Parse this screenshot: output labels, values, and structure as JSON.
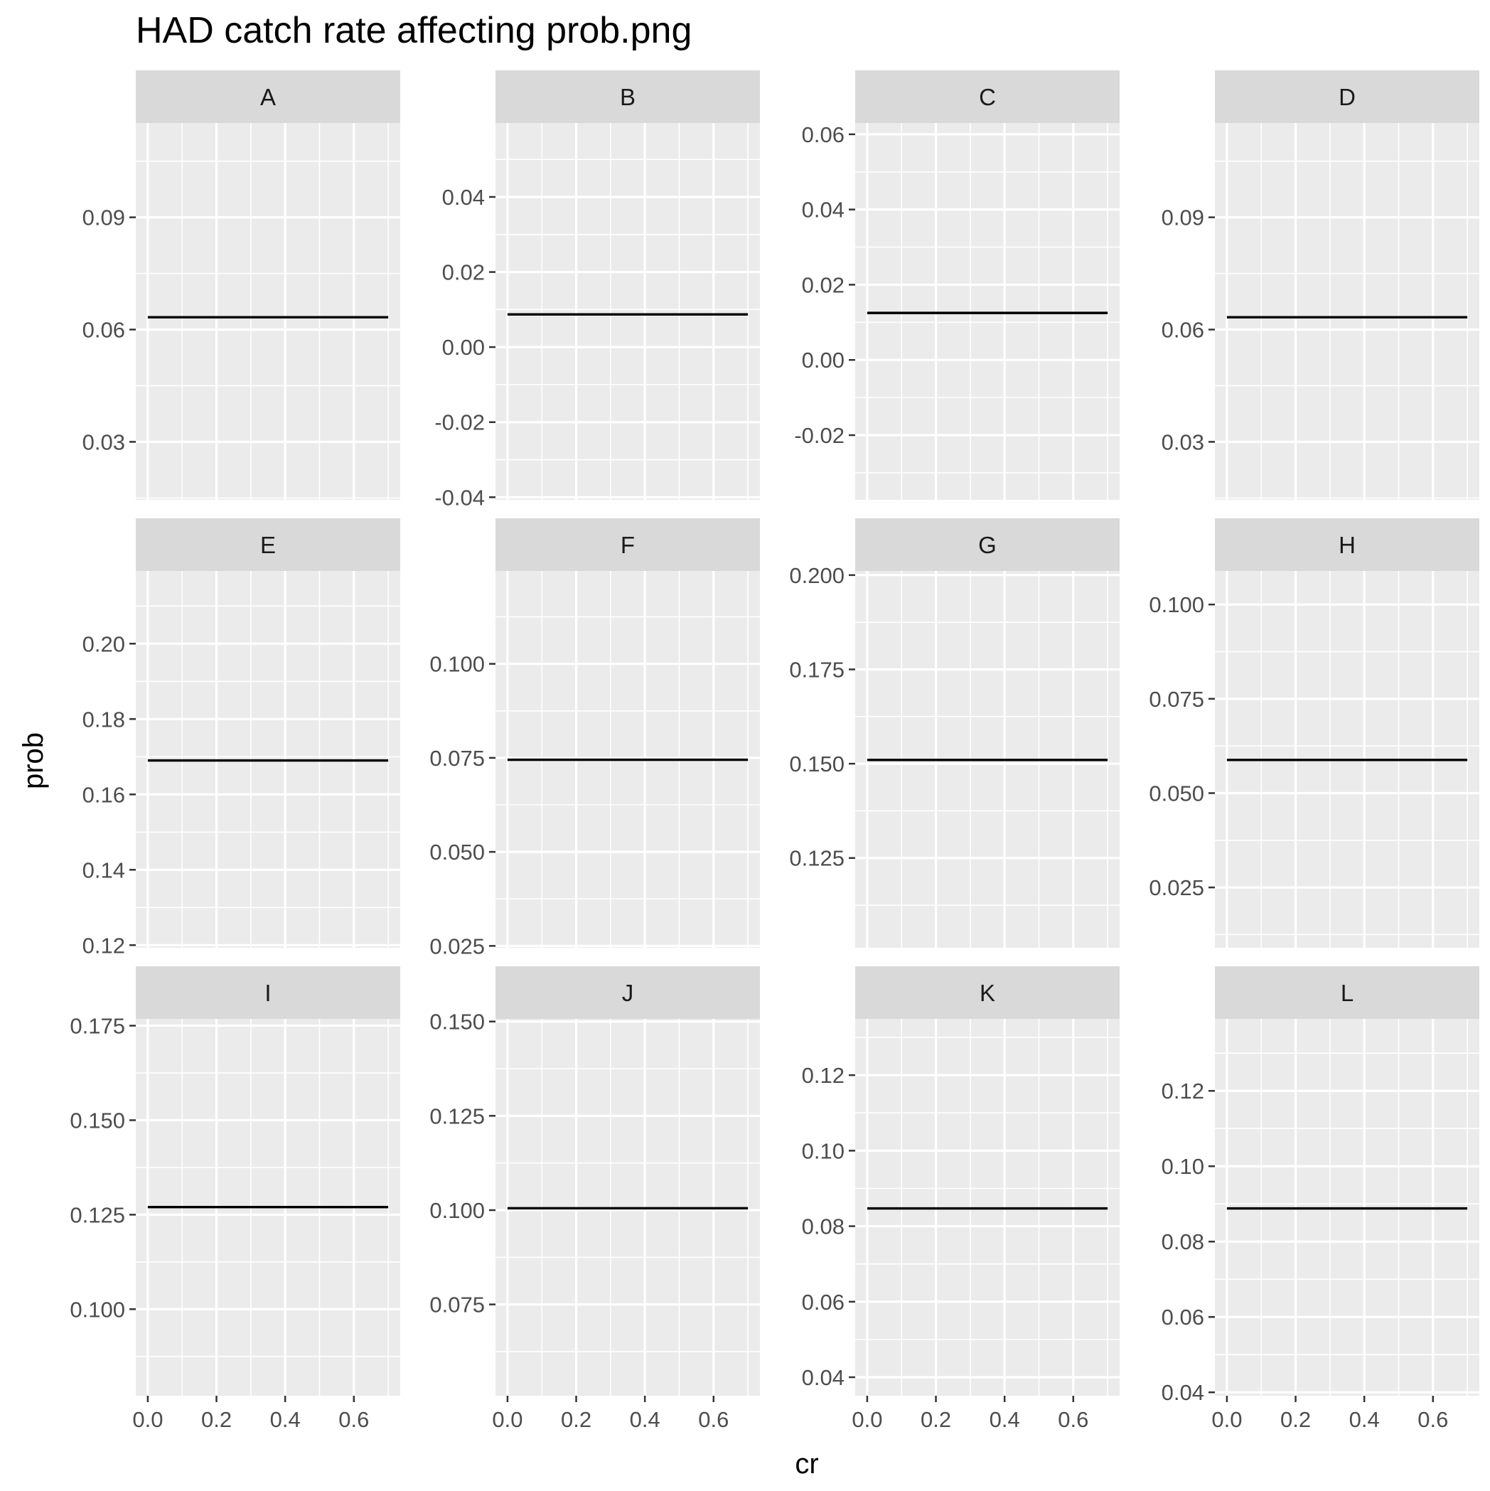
{
  "chart_data": {
    "type": "line",
    "title": "HAD catch rate affecting prob.png",
    "xlabel": "cr",
    "ylabel": "prob",
    "grid": true,
    "layout": "facet-4x3",
    "x_ticks": [
      "0.0",
      "0.2",
      "0.4",
      "0.6"
    ],
    "xlim": [
      -0.035,
      0.735
    ],
    "panels": [
      {
        "label": "A",
        "x": [
          0.0,
          0.7
        ],
        "y": [
          0.0633,
          0.0633
        ],
        "ylim": [
          0.0145,
          0.1152
        ],
        "y_ticks": [
          "0.03",
          "0.06",
          "0.09"
        ]
      },
      {
        "label": "B",
        "x": [
          0.0,
          0.7
        ],
        "y": [
          0.0087,
          0.0087
        ],
        "ylim": [
          -0.0407,
          0.0597
        ],
        "y_ticks": [
          "-0.04",
          "-0.02",
          "0.00",
          "0.02",
          "0.04"
        ]
      },
      {
        "label": "C",
        "x": [
          0.0,
          0.7
        ],
        "y": [
          0.0125,
          0.0125
        ],
        "ylim": [
          -0.0372,
          0.063
        ],
        "y_ticks": [
          "-0.02",
          "0.00",
          "0.02",
          "0.04",
          "0.06"
        ]
      },
      {
        "label": "D",
        "x": [
          0.0,
          0.7
        ],
        "y": [
          0.0633,
          0.0633
        ],
        "ylim": [
          0.0145,
          0.1152
        ],
        "y_ticks": [
          "0.03",
          "0.06",
          "0.09"
        ]
      },
      {
        "label": "E",
        "x": [
          0.0,
          0.7
        ],
        "y": [
          0.169,
          0.169
        ],
        "ylim": [
          0.1193,
          0.2193
        ],
        "y_ticks": [
          "0.12",
          "0.14",
          "0.16",
          "0.18",
          "0.20"
        ]
      },
      {
        "label": "F",
        "x": [
          0.0,
          0.7
        ],
        "y": [
          0.0745,
          0.0745
        ],
        "ylim": [
          0.0245,
          0.1247
        ],
        "y_ticks": [
          "0.025",
          "0.050",
          "0.075",
          "0.100"
        ]
      },
      {
        "label": "G",
        "x": [
          0.0,
          0.7
        ],
        "y": [
          0.151,
          0.151
        ],
        "ylim": [
          0.1012,
          0.2011
        ],
        "y_ticks": [
          "0.125",
          "0.150",
          "0.175",
          "0.200"
        ]
      },
      {
        "label": "H",
        "x": [
          0.0,
          0.7
        ],
        "y": [
          0.0588,
          0.0588
        ],
        "ylim": [
          0.009,
          0.1089
        ],
        "y_ticks": [
          "0.025",
          "0.050",
          "0.075",
          "0.100"
        ]
      },
      {
        "label": "I",
        "x": [
          0.0,
          0.7
        ],
        "y": [
          0.127,
          0.127
        ],
        "ylim": [
          0.0771,
          0.1768
        ],
        "y_ticks": [
          "0.100",
          "0.125",
          "0.150",
          "0.175"
        ]
      },
      {
        "label": "J",
        "x": [
          0.0,
          0.7
        ],
        "y": [
          0.1005,
          0.1005
        ],
        "ylim": [
          0.0508,
          0.1507
        ],
        "y_ticks": [
          "0.075",
          "0.100",
          "0.125",
          "0.150"
        ]
      },
      {
        "label": "K",
        "x": [
          0.0,
          0.7
        ],
        "y": [
          0.0847,
          0.0847
        ],
        "ylim": [
          0.0351,
          0.1349
        ],
        "y_ticks": [
          "0.04",
          "0.06",
          "0.08",
          "0.10",
          "0.12"
        ]
      },
      {
        "label": "L",
        "x": [
          0.0,
          0.7
        ],
        "y": [
          0.0888,
          0.0888
        ],
        "ylim": [
          0.0391,
          0.1391
        ],
        "y_ticks": [
          "0.04",
          "0.06",
          "0.08",
          "0.10",
          "0.12"
        ]
      }
    ],
    "colors": {
      "panel_bg": "#ebebeb",
      "strip_bg": "#d9d9d9",
      "grid": "#ffffff",
      "line": "#000000",
      "tick": "#333333"
    }
  }
}
